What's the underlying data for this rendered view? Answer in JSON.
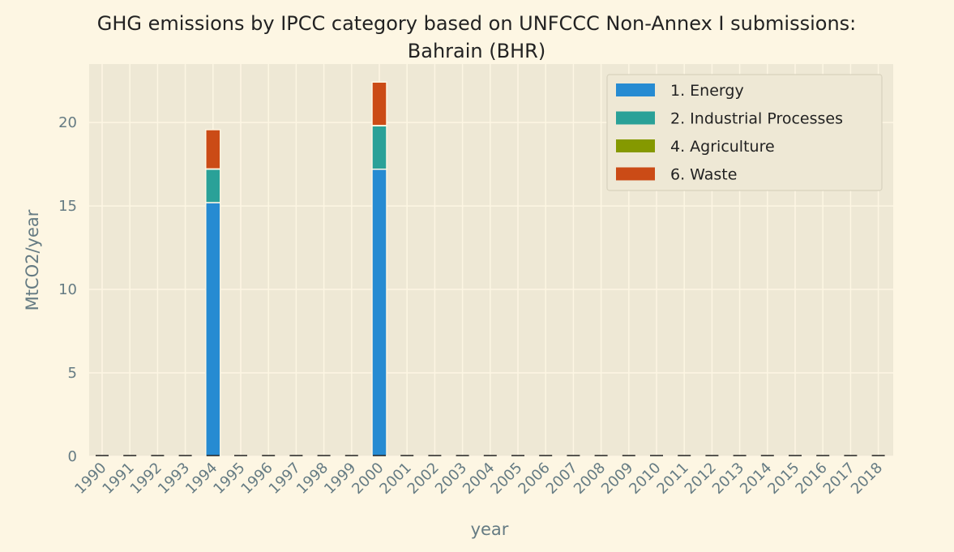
{
  "chart_data": {
    "type": "bar",
    "stacked": true,
    "title_lines": [
      "GHG emissions by IPCC category based on UNFCCC Non-Annex I submissions:",
      "Bahrain (BHR)"
    ],
    "xlabel": "year",
    "ylabel": "MtCO2/year",
    "ylim": [
      0,
      23.5
    ],
    "yticks": [
      0,
      5,
      10,
      15,
      20
    ],
    "grid": true,
    "legend_position": "top-right",
    "categories": [
      "1990",
      "1991",
      "1992",
      "1993",
      "1994",
      "1995",
      "1996",
      "1997",
      "1998",
      "1999",
      "2000",
      "2001",
      "2002",
      "2003",
      "2004",
      "2005",
      "2006",
      "2007",
      "2008",
      "2009",
      "2010",
      "2011",
      "2012",
      "2013",
      "2014",
      "2015",
      "2016",
      "2017",
      "2018"
    ],
    "series": [
      {
        "name": "1. Energy",
        "color": "#268bd2",
        "values": [
          0,
          0,
          0,
          0,
          15.2,
          0,
          0,
          0,
          0,
          0,
          17.2,
          0,
          0,
          0,
          0,
          0,
          0,
          0,
          0,
          0,
          0,
          0,
          0,
          0,
          0,
          0,
          0,
          0,
          0
        ]
      },
      {
        "name": "2. Industrial Processes",
        "color": "#2aa198",
        "values": [
          0,
          0,
          0,
          0,
          2.0,
          0,
          0,
          0,
          0,
          0,
          2.6,
          0,
          0,
          0,
          0,
          0,
          0,
          0,
          0,
          0,
          0,
          0,
          0,
          0,
          0,
          0,
          0,
          0,
          0
        ]
      },
      {
        "name": "4. Agriculture",
        "color": "#859900",
        "values": [
          0,
          0,
          0,
          0,
          0.02,
          0,
          0,
          0,
          0,
          0,
          0.02,
          0,
          0,
          0,
          0,
          0,
          0,
          0,
          0,
          0,
          0,
          0,
          0,
          0,
          0,
          0,
          0,
          0,
          0
        ]
      },
      {
        "name": "6. Waste",
        "color": "#cb4b16",
        "values": [
          0,
          0,
          0,
          0,
          2.35,
          0,
          0,
          0,
          0,
          0,
          2.6,
          0,
          0,
          0,
          0,
          0,
          0,
          0,
          0,
          0,
          0,
          0,
          0,
          0,
          0,
          0,
          0,
          0,
          0
        ]
      }
    ]
  }
}
